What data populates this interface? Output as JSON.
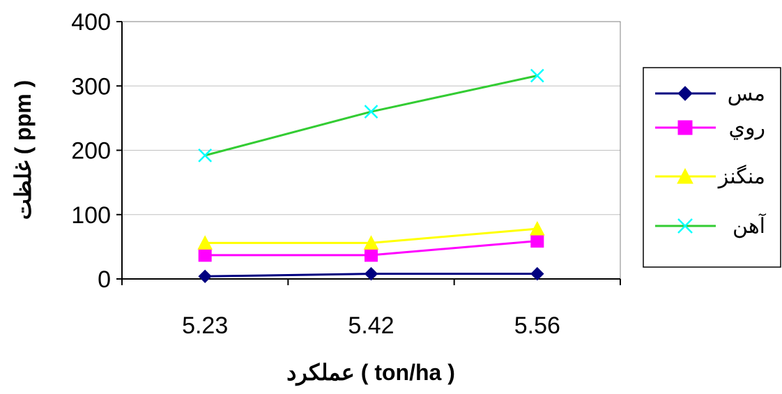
{
  "chart_data": {
    "type": "line",
    "x": [
      "5.23",
      "5.42",
      "5.56"
    ],
    "xlabel": "عملکرد ( ton/ha )",
    "ylabel": "غلظت ( ppm )",
    "ylim": [
      0,
      400
    ],
    "yticks": [
      0,
      100,
      200,
      300,
      400
    ],
    "grid": true,
    "legend_position": "right",
    "series": [
      {
        "name": "مس",
        "values": [
          4,
          8,
          8
        ],
        "color": "#000080",
        "marker": "diamond"
      },
      {
        "name": "روي",
        "values": [
          37,
          37,
          59
        ],
        "color": "#FF00FF",
        "marker": "square"
      },
      {
        "name": "منگنز",
        "values": [
          56,
          56,
          78
        ],
        "color": "#FFFF00",
        "marker": "triangle"
      },
      {
        "name": "آهن",
        "values": [
          192,
          260,
          316
        ],
        "color": "#33CC33",
        "marker_color": "#00FFFF",
        "marker": "x"
      }
    ]
  }
}
